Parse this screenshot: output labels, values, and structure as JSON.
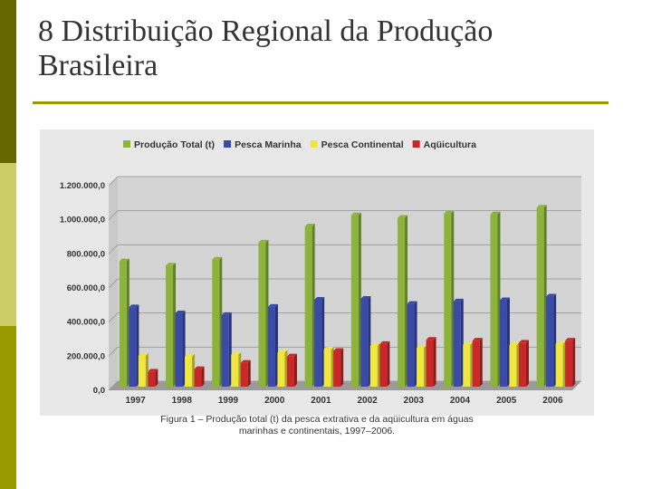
{
  "slide": {
    "title_line1": "8 Distribuição Regional da Produção",
    "title_line2": "Brasileira"
  },
  "caption": {
    "line1": "Figura 1 – Produção total (t) da pesca extrativa e da aqüicultura em águas",
    "line2": "marinhas e continentais, 1997–2006."
  },
  "colors": {
    "sidebar_dark": "#666600",
    "sidebar_light": "#cccc66",
    "sidebar_mid": "#999900",
    "rule": "#999900"
  },
  "chart_data": {
    "type": "bar",
    "title": "",
    "xlabel": "",
    "ylabel": "",
    "ylim": [
      0,
      1200000
    ],
    "y_ticks": [
      "0,0",
      "200.000,0",
      "400.000,0",
      "600.000,0",
      "800.000,0",
      "1.000.000,0",
      "1.200.000,0"
    ],
    "grid": true,
    "legend_position": "top",
    "categories": [
      "1997",
      "1998",
      "1999",
      "2000",
      "2001",
      "2002",
      "2003",
      "2004",
      "2005",
      "2006"
    ],
    "series": [
      {
        "name": "Produção Total (t)",
        "color": "#8cb43a",
        "values": [
          735000,
          710000,
          745000,
          845000,
          940000,
          1005000,
          990000,
          1015000,
          1010000,
          1050000
        ]
      },
      {
        "name": "Pesca Marinha",
        "color": "#3a4aa8",
        "values": [
          465000,
          430000,
          420000,
          468000,
          510000,
          515000,
          485000,
          500000,
          507000,
          528000
        ]
      },
      {
        "name": "Pesca Continental",
        "color": "#f0e640",
        "values": [
          182000,
          177000,
          187000,
          200000,
          218000,
          240000,
          228000,
          246000,
          243000,
          251000
        ]
      },
      {
        "name": "Aqüicultura",
        "color": "#c82828",
        "values": [
          88000,
          103000,
          140000,
          177000,
          210000,
          250000,
          275000,
          270000,
          258000,
          270000
        ]
      }
    ]
  }
}
